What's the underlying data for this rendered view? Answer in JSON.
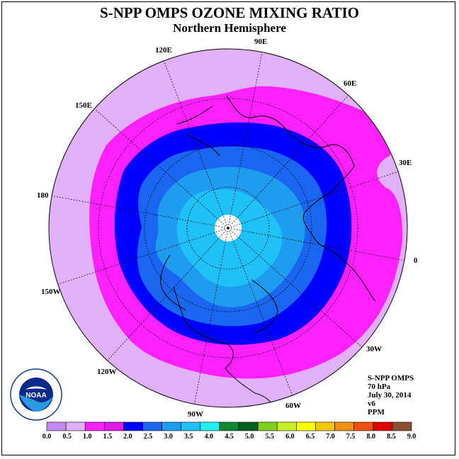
{
  "title": "S-NPP OMPS OZONE MIXING RATIO",
  "subtitle": "Northern Hemisphere",
  "longitude_labels": [
    "90E",
    "60E",
    "30E",
    "0",
    "30W",
    "60W",
    "90W",
    "120W",
    "150W",
    "180",
    "150E",
    "120E"
  ],
  "info": {
    "instrument": "S-NPP OMPS",
    "level": "70 hPa",
    "date": "July 30, 2014",
    "version": "v6",
    "units": "PPM"
  },
  "logo_text": "NOAA",
  "colorbar": {
    "ticks": [
      "0.0",
      "0.5",
      "1.0",
      "1.5",
      "2.0",
      "2.5",
      "3.0",
      "3.5",
      "4.0",
      "4.5",
      "5.0",
      "5.5",
      "6.0",
      "6.5",
      "7.0",
      "7.5",
      "8.0",
      "8.5",
      "9.0"
    ],
    "colors": [
      "#c48af0",
      "#e0b0f8",
      "#ff20ff",
      "#e018e8",
      "#0000ff",
      "#1a66f0",
      "#1e9cf0",
      "#20c0f8",
      "#20f0f0",
      "#108a30",
      "#006020",
      "#80d020",
      "#c8f020",
      "#ffff00",
      "#f8c800",
      "#f09010",
      "#f05010",
      "#e00000",
      "#8a5030"
    ]
  },
  "map_data": {
    "projection": "north polar stereographic",
    "contour_levels_ppm": [
      0.5,
      1.0,
      1.5,
      2.0,
      2.5,
      3.0,
      3.5
    ],
    "fill_colors": {
      "0.5-1.0": "#e0b0f8",
      "1.0-1.5": "#ff20ff",
      "1.5-2.0": "#0000ff",
      "2.0-2.5": "#1a66f0",
      "2.5-3.0": "#1e9cf0",
      "3.0-3.5": "#20c0f8",
      "no-data": "#ffffff"
    }
  }
}
